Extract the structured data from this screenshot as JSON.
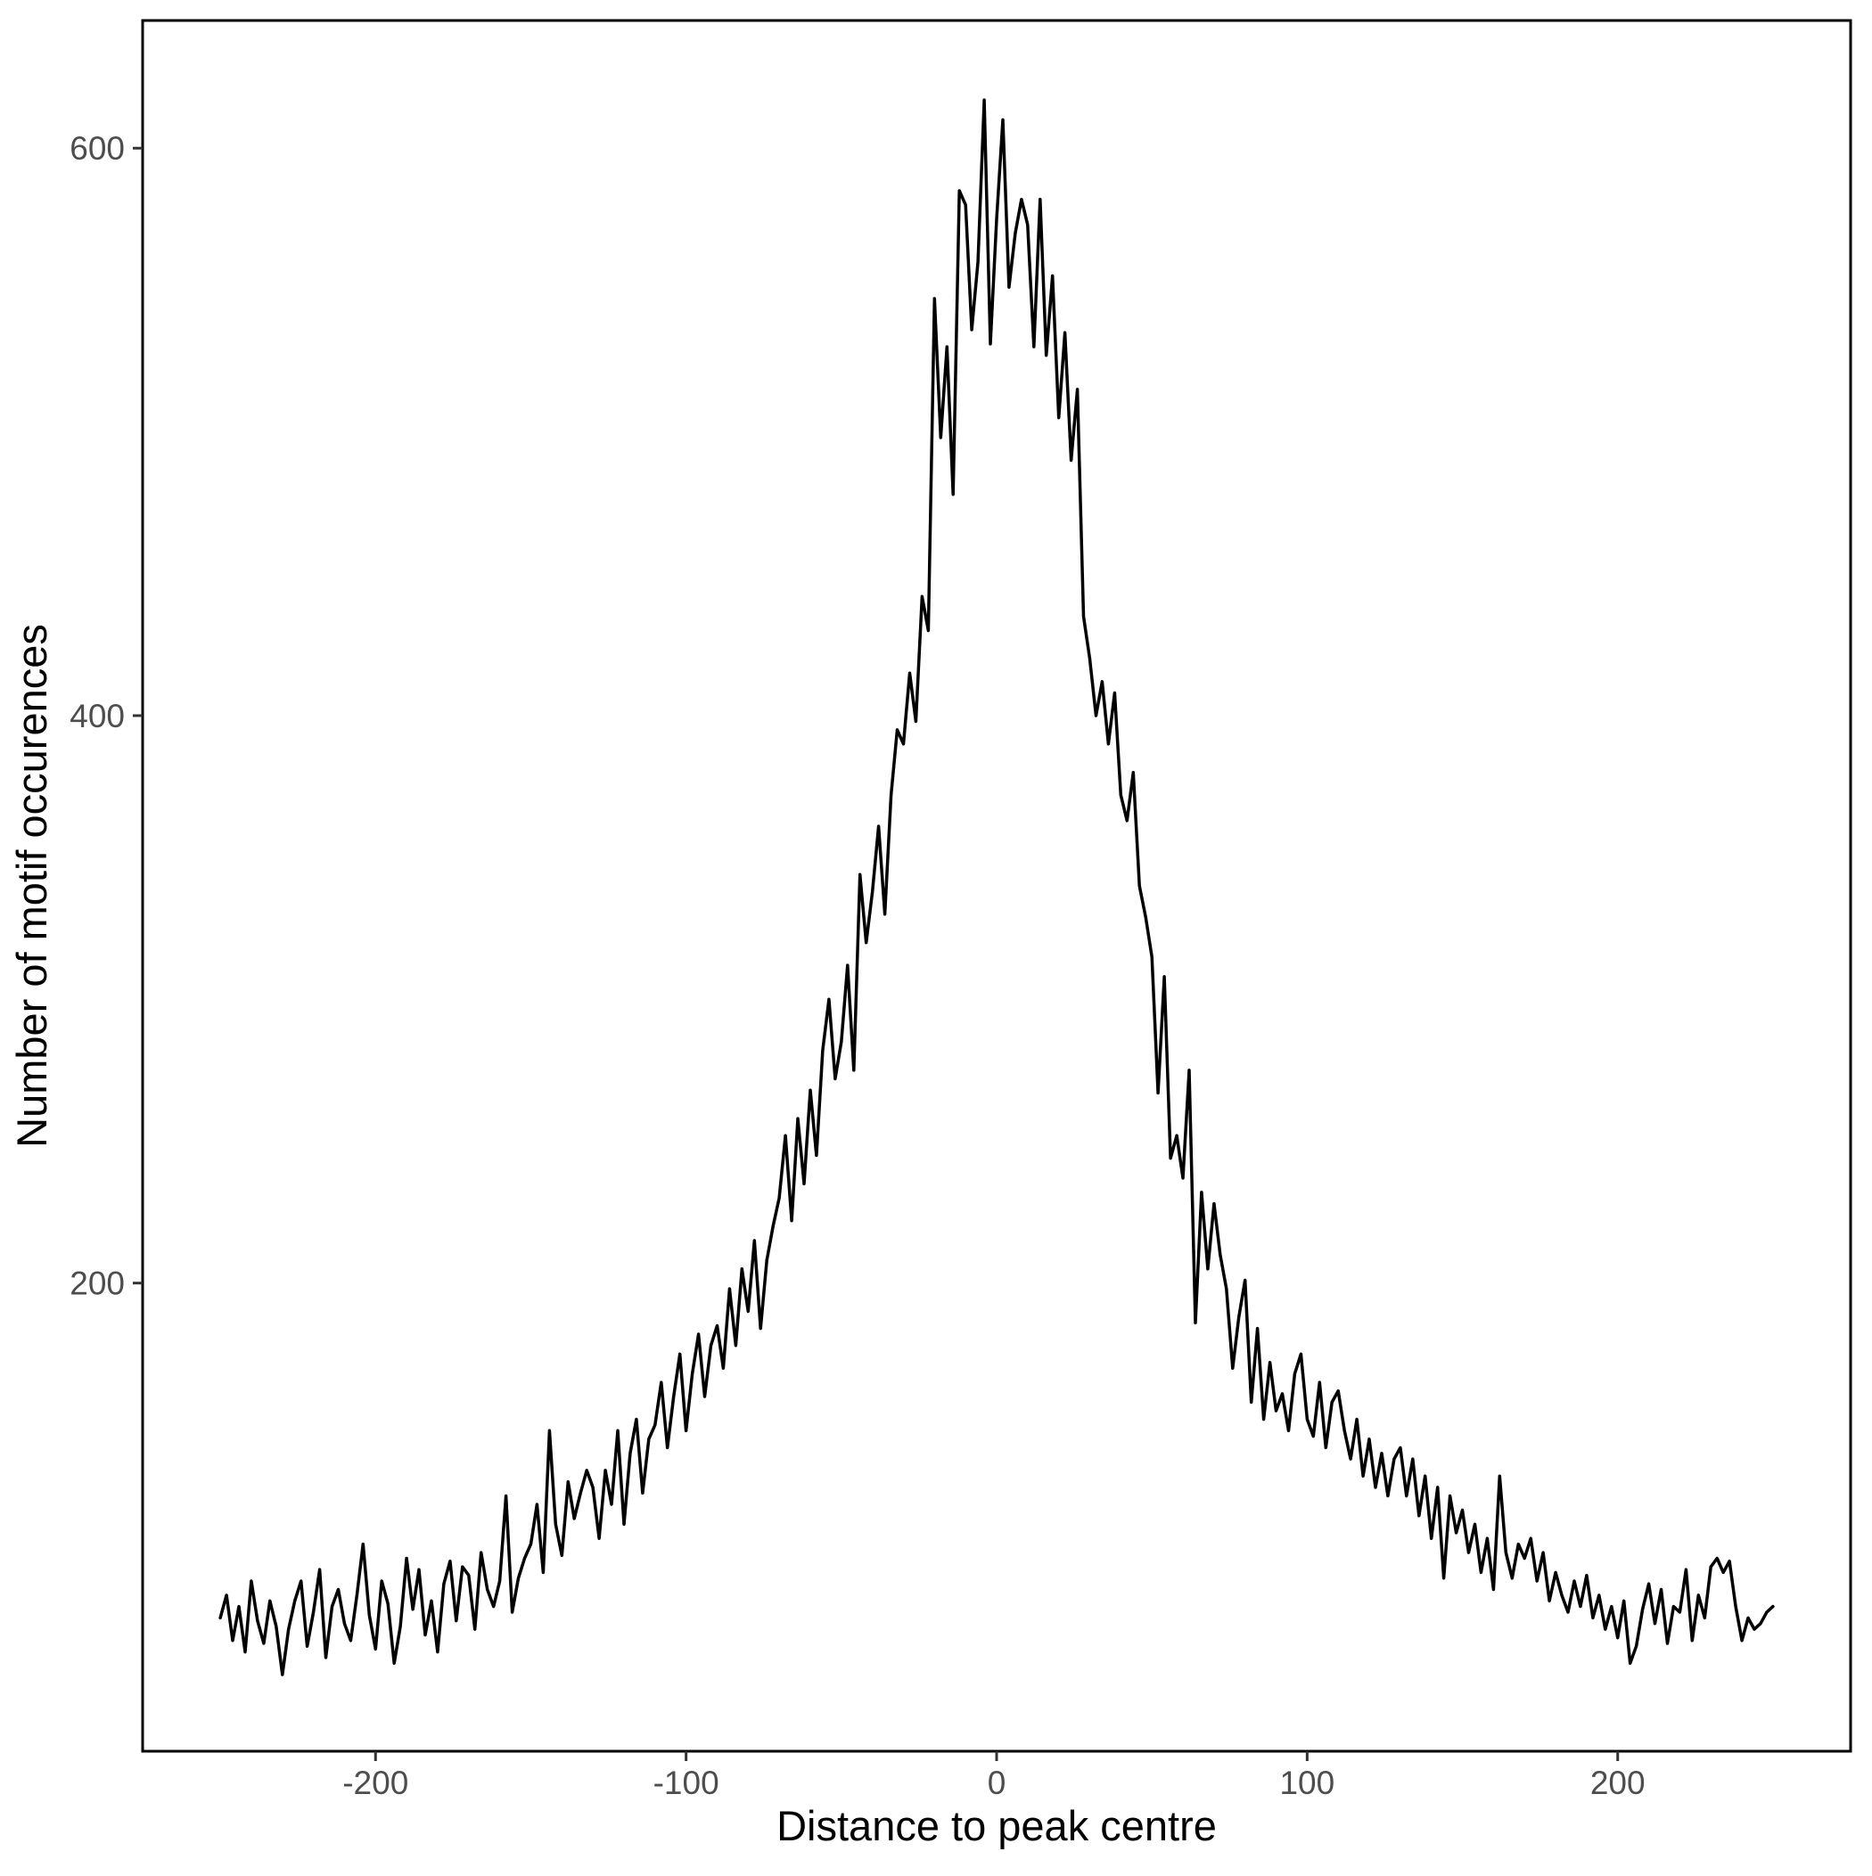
{
  "chart_data": {
    "type": "line",
    "title": "",
    "xlabel": "Distance to peak centre",
    "ylabel": "Number of motif occurences",
    "x_ticks": [
      -200,
      -100,
      0,
      100,
      200
    ],
    "y_ticks": [
      200,
      400,
      600
    ],
    "xlim": [
      -275,
      275
    ],
    "ylim": [
      35,
      645
    ],
    "grid": false,
    "legend": "none",
    "line_color": "#000000",
    "background_color": "#ffffff",
    "panel_border_color": "#000000",
    "axis_text_color": "#4d4d4d",
    "axis_title_color": "#000000",
    "tick_mark_color": "#333333",
    "series": [
      {
        "name": "motif occurrences",
        "x_start": -250,
        "x_step": 2,
        "x_end": 250,
        "y": [
          82,
          90,
          74,
          86,
          70,
          95,
          81,
          73,
          88,
          79,
          62,
          78,
          88,
          95,
          72,
          84,
          99,
          68,
          86,
          92,
          80,
          74,
          90,
          108,
          83,
          71,
          95,
          87,
          66,
          79,
          103,
          85,
          99,
          76,
          88,
          70,
          94,
          102,
          81,
          100,
          97,
          78,
          105,
          92,
          86,
          95,
          125,
          84,
          96,
          103,
          108,
          122,
          98,
          148,
          115,
          104,
          130,
          117,
          126,
          134,
          128,
          110,
          134,
          122,
          148,
          115,
          140,
          152,
          126,
          145,
          150,
          165,
          142,
          160,
          175,
          148,
          168,
          182,
          160,
          178,
          185,
          170,
          198,
          178,
          205,
          190,
          215,
          184,
          208,
          220,
          230,
          252,
          222,
          258,
          235,
          268,
          245,
          282,
          300,
          272,
          285,
          312,
          275,
          344,
          320,
          338,
          361,
          330,
          372,
          395,
          390,
          415,
          398,
          442,
          430,
          547,
          498,
          530,
          478,
          585,
          580,
          536,
          560,
          617,
          531,
          575,
          610,
          551,
          570,
          582,
          573,
          530,
          582,
          527,
          555,
          505,
          535,
          490,
          515,
          435,
          420,
          400,
          412,
          390,
          408,
          372,
          363,
          380,
          340,
          329,
          315,
          267,
          308,
          244,
          252,
          237,
          275,
          186,
          232,
          205,
          228,
          210,
          198,
          170,
          188,
          201,
          158,
          184,
          152,
          172,
          155,
          161,
          148,
          168,
          175,
          152,
          146,
          165,
          142,
          158,
          162,
          148,
          138,
          152,
          132,
          145,
          128,
          140,
          125,
          138,
          142,
          125,
          138,
          118,
          132,
          110,
          128,
          96,
          125,
          112,
          120,
          105,
          115,
          98,
          110,
          92,
          132,
          105,
          96,
          108,
          103,
          110,
          95,
          105,
          88,
          98,
          90,
          84,
          95,
          86,
          97,
          82,
          90,
          78,
          86,
          75,
          88,
          66,
          72,
          85,
          94,
          80,
          92,
          73,
          86,
          84,
          99,
          74,
          90,
          82,
          100,
          103,
          98,
          102,
          86,
          74,
          82,
          78,
          80,
          84,
          86
        ]
      }
    ]
  }
}
